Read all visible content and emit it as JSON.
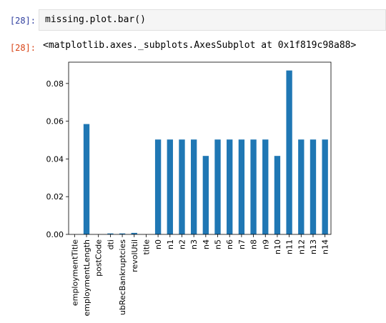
{
  "input_cell": {
    "prompt": "[28]:",
    "code_object": "missing",
    "code_dot1": ".",
    "code_attr1": "plot",
    "code_dot2": ".",
    "code_attr2": "bar",
    "code_parens": "()"
  },
  "output_cell": {
    "prompt": "[28]:",
    "text": "<matplotlib.axes._subplots.AxesSubplot at 0x1f819c98a88>"
  },
  "colors": {
    "bar": "#1f77b4",
    "input_prompt": "#303f9f",
    "output_prompt": "#d84315"
  },
  "chart_data": {
    "type": "bar",
    "categories": [
      "employmentTitle",
      "employmentLength",
      "postCode",
      "dti",
      "pubRecBankruptcies",
      "revolUtil",
      "title",
      "n0",
      "n1",
      "n2",
      "n3",
      "n4",
      "n5",
      "n6",
      "n7",
      "n8",
      "n9",
      "n10",
      "n11",
      "n12",
      "n13",
      "n14"
    ],
    "category_labels_shown": [
      "employmentTitle",
      "employmentLength",
      "postCode",
      "dti",
      "ubRecBankruptcies",
      "revolUtil",
      "title",
      "n0",
      "n1",
      "n2",
      "n3",
      "n4",
      "n5",
      "n6",
      "n7",
      "n8",
      "n9",
      "n10",
      "n11",
      "n12",
      "n13",
      "n14"
    ],
    "values": [
      0.0,
      0.0585,
      0.0,
      0.0005,
      0.0005,
      0.0008,
      0.0,
      0.0503,
      0.0503,
      0.0503,
      0.0503,
      0.0416,
      0.0503,
      0.0503,
      0.0503,
      0.0503,
      0.0503,
      0.0416,
      0.0869,
      0.0503,
      0.0503,
      0.0503
    ],
    "yticks": [
      "0.00",
      "0.02",
      "0.04",
      "0.06",
      "0.08"
    ],
    "ytick_values": [
      0.0,
      0.02,
      0.04,
      0.06,
      0.08
    ],
    "ylim": [
      0,
      0.0913
    ],
    "title": "",
    "xlabel": "",
    "ylabel": "",
    "grid": false,
    "legend": false
  }
}
